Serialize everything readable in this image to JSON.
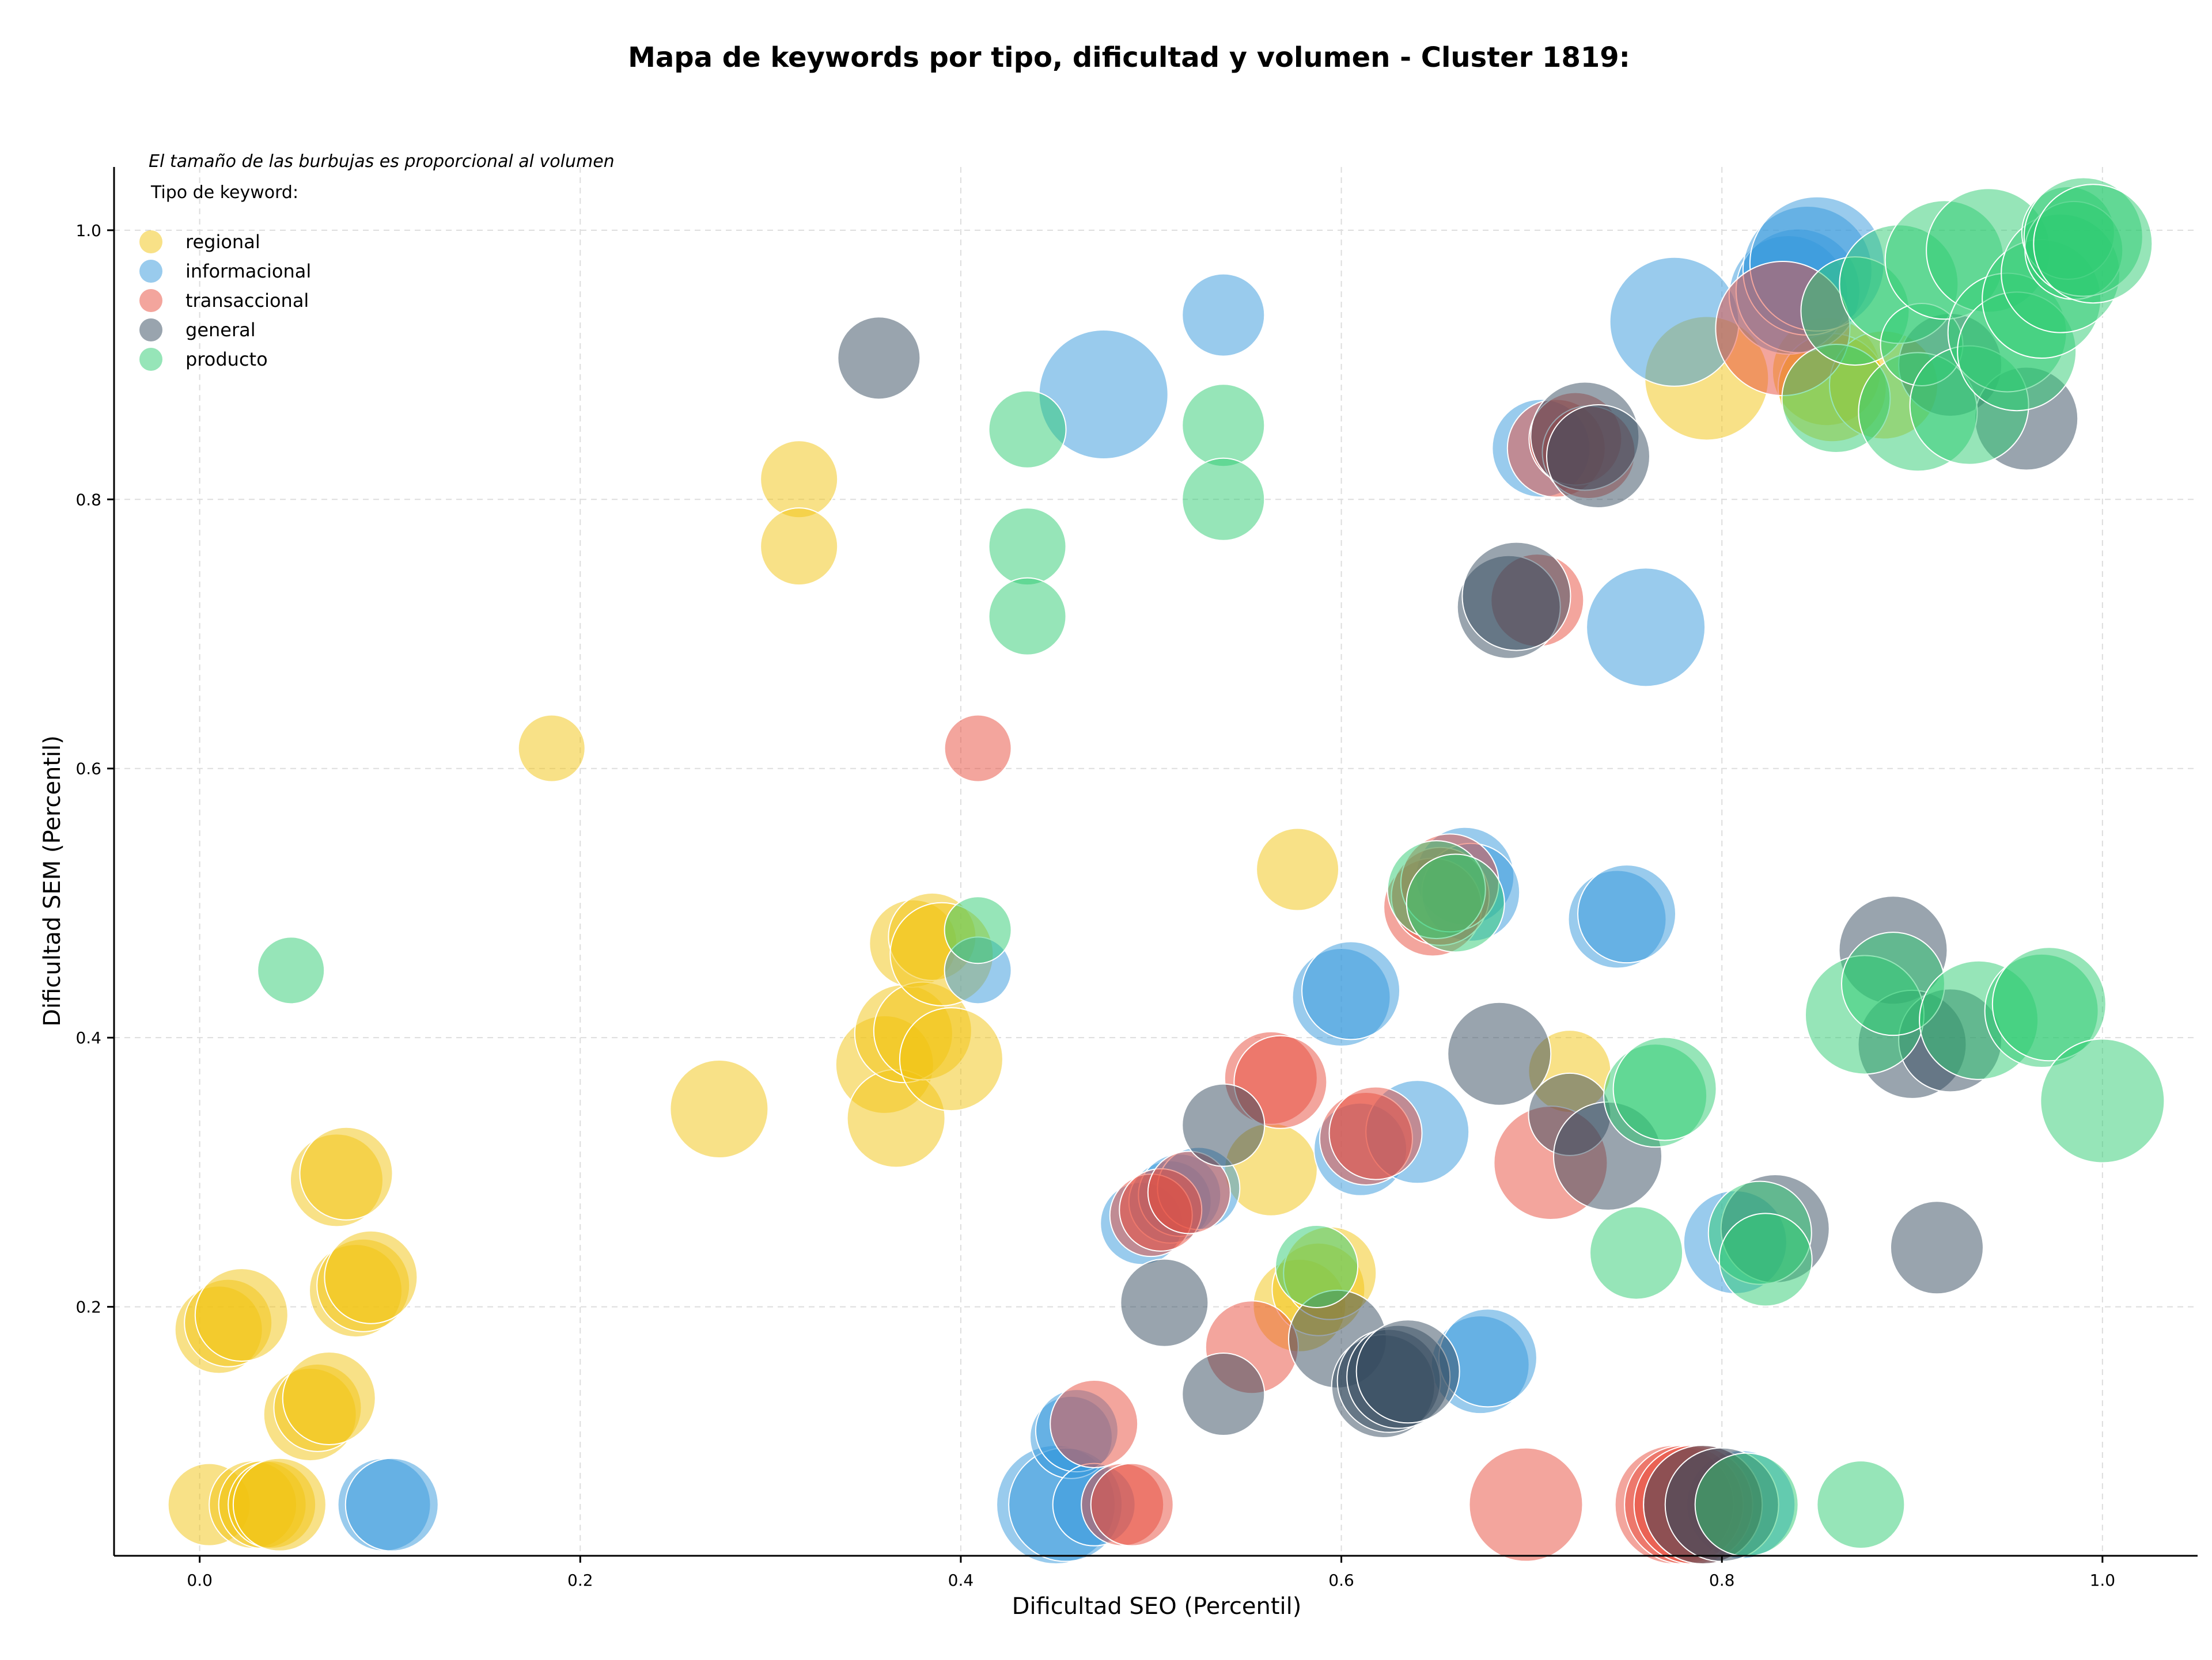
{
  "chart_data": {
    "type": "scatter",
    "title": "Mapa de keywords por tipo, dificultad y volumen - Cluster 1819:",
    "xlabel": "Dificultad SEO (Percentil)",
    "ylabel": "Dificultad SEM (Percentil)",
    "xlim": [
      -0.045,
      1.05
    ],
    "ylim": [
      0.015,
      1.047
    ],
    "x_ticks": [
      0.0,
      0.2,
      0.4,
      0.6,
      0.8,
      1.0
    ],
    "y_ticks": [
      0.2,
      0.4,
      0.6,
      0.8,
      1.0
    ],
    "x_tick_labels": [
      "0.0",
      "0.2",
      "0.4",
      "0.6",
      "0.8",
      "1.0"
    ],
    "y_tick_labels": [
      "0.2",
      "0.4",
      "0.6",
      "0.8",
      "1.0"
    ],
    "grid": true,
    "note": "El tamaño de las burbujas es proporcional al volumen",
    "legend_title": "Tipo de keyword:",
    "legend_position": "top-left",
    "series": [
      {
        "name": "regional",
        "color": "#f1c40f",
        "points": [
          [
            0.005,
            0.053,
            0.35
          ],
          [
            0.01,
            0.183,
            0.4
          ],
          [
            0.015,
            0.188,
            0.4
          ],
          [
            0.022,
            0.194,
            0.45
          ],
          [
            0.028,
            0.053,
            0.4
          ],
          [
            0.033,
            0.053,
            0.4
          ],
          [
            0.038,
            0.053,
            0.4
          ],
          [
            0.042,
            0.053,
            0.45
          ],
          [
            0.058,
            0.12,
            0.45
          ],
          [
            0.062,
            0.125,
            0.4
          ],
          [
            0.068,
            0.132,
            0.45
          ],
          [
            0.072,
            0.294,
            0.45
          ],
          [
            0.077,
            0.299,
            0.45
          ],
          [
            0.082,
            0.212,
            0.45
          ],
          [
            0.086,
            0.216,
            0.45
          ],
          [
            0.09,
            0.222,
            0.45
          ],
          [
            0.185,
            0.615,
            0.2
          ],
          [
            0.273,
            0.347,
            0.5
          ],
          [
            0.315,
            0.815,
            0.3
          ],
          [
            0.315,
            0.765,
            0.3
          ],
          [
            0.36,
            0.38,
            0.5
          ],
          [
            0.366,
            0.34,
            0.5
          ],
          [
            0.37,
            0.403,
            0.5
          ],
          [
            0.375,
            0.47,
            0.4
          ],
          [
            0.38,
            0.405,
            0.5
          ],
          [
            0.385,
            0.475,
            0.4
          ],
          [
            0.39,
            0.462,
            0.55
          ],
          [
            0.395,
            0.384,
            0.55
          ],
          [
            0.563,
            0.302,
            0.45
          ],
          [
            0.578,
            0.201,
            0.45
          ],
          [
            0.588,
            0.213,
            0.45
          ],
          [
            0.594,
            0.225,
            0.45
          ],
          [
            0.577,
            0.525,
            0.35
          ],
          [
            0.72,
            0.375,
            0.35
          ],
          [
            0.792,
            0.89,
            0.75
          ],
          [
            0.855,
            0.895,
            0.6
          ],
          [
            0.858,
            0.883,
            0.6
          ],
          [
            0.885,
            0.885,
            0.6
          ]
        ]
      },
      {
        "name": "informacional",
        "color": "#3498db",
        "points": [
          [
            0.097,
            0.053,
            0.45
          ],
          [
            0.101,
            0.053,
            0.45
          ],
          [
            0.409,
            0.45,
            0.2
          ],
          [
            0.45,
            0.053,
            0.7
          ],
          [
            0.455,
            0.053,
            0.65
          ],
          [
            0.458,
            0.103,
            0.35
          ],
          [
            0.461,
            0.108,
            0.35
          ],
          [
            0.47,
            0.053,
            0.35
          ],
          [
            0.475,
            0.878,
            0.8
          ],
          [
            0.495,
            0.262,
            0.35
          ],
          [
            0.51,
            0.278,
            0.35
          ],
          [
            0.515,
            0.283,
            0.35
          ],
          [
            0.525,
            0.288,
            0.35
          ],
          [
            0.538,
            0.937,
            0.35
          ],
          [
            0.6,
            0.43,
            0.5
          ],
          [
            0.605,
            0.435,
            0.5
          ],
          [
            0.61,
            0.317,
            0.45
          ],
          [
            0.64,
            0.33,
            0.55
          ],
          [
            0.665,
            0.52,
            0.5
          ],
          [
            0.668,
            0.508,
            0.5
          ],
          [
            0.673,
            0.157,
            0.5
          ],
          [
            0.677,
            0.162,
            0.5
          ],
          [
            0.705,
            0.838,
            0.5
          ],
          [
            0.745,
            0.488,
            0.5
          ],
          [
            0.75,
            0.492,
            0.5
          ],
          [
            0.76,
            0.705,
            0.7
          ],
          [
            0.775,
            0.932,
            0.8
          ],
          [
            0.807,
            0.248,
            0.55
          ],
          [
            0.81,
            0.053,
            0.6
          ],
          [
            0.835,
            0.952,
            0.7
          ],
          [
            0.84,
            0.955,
            0.75
          ],
          [
            0.845,
            0.97,
            0.8
          ],
          [
            0.85,
            0.975,
            0.85
          ]
        ]
      },
      {
        "name": "transaccional",
        "color": "#e74c3c",
        "points": [
          [
            0.409,
            0.615,
            0.2
          ],
          [
            0.47,
            0.113,
            0.4
          ],
          [
            0.485,
            0.053,
            0.35
          ],
          [
            0.49,
            0.053,
            0.35
          ],
          [
            0.5,
            0.268,
            0.35
          ],
          [
            0.505,
            0.272,
            0.35
          ],
          [
            0.52,
            0.285,
            0.35
          ],
          [
            0.553,
            0.17,
            0.45
          ],
          [
            0.563,
            0.37,
            0.45
          ],
          [
            0.568,
            0.367,
            0.45
          ],
          [
            0.613,
            0.325,
            0.45
          ],
          [
            0.618,
            0.329,
            0.45
          ],
          [
            0.648,
            0.497,
            0.5
          ],
          [
            0.652,
            0.505,
            0.5
          ],
          [
            0.657,
            0.515,
            0.5
          ],
          [
            0.697,
            0.053,
            0.65
          ],
          [
            0.703,
            0.725,
            0.45
          ],
          [
            0.71,
            0.307,
            0.65
          ],
          [
            0.713,
            0.838,
            0.5
          ],
          [
            0.723,
            0.845,
            0.45
          ],
          [
            0.73,
            0.835,
            0.45
          ],
          [
            0.775,
            0.053,
            0.7
          ],
          [
            0.78,
            0.053,
            0.7
          ],
          [
            0.785,
            0.053,
            0.7
          ],
          [
            0.79,
            0.053,
            0.7
          ],
          [
            0.832,
            0.927,
            0.85
          ]
        ]
      },
      {
        "name": "general",
        "color": "#34495e",
        "points": [
          [
            0.357,
            0.905,
            0.35
          ],
          [
            0.507,
            0.203,
            0.4
          ],
          [
            0.538,
            0.135,
            0.35
          ],
          [
            0.538,
            0.335,
            0.35
          ],
          [
            0.598,
            0.176,
            0.5
          ],
          [
            0.622,
            0.141,
            0.55
          ],
          [
            0.625,
            0.145,
            0.55
          ],
          [
            0.63,
            0.148,
            0.55
          ],
          [
            0.635,
            0.152,
            0.55
          ],
          [
            0.683,
            0.388,
            0.55
          ],
          [
            0.688,
            0.72,
            0.55
          ],
          [
            0.692,
            0.728,
            0.6
          ],
          [
            0.72,
            0.343,
            0.35
          ],
          [
            0.728,
            0.847,
            0.6
          ],
          [
            0.735,
            0.832,
            0.55
          ],
          [
            0.74,
            0.312,
            0.6
          ],
          [
            0.79,
            0.053,
            0.7
          ],
          [
            0.8,
            0.053,
            0.65
          ],
          [
            0.828,
            0.258,
            0.6
          ],
          [
            0.89,
            0.465,
            0.6
          ],
          [
            0.9,
            0.395,
            0.6
          ],
          [
            0.913,
            0.244,
            0.45
          ],
          [
            0.92,
            0.398,
            0.55
          ],
          [
            0.92,
            0.9,
            0.55
          ],
          [
            0.96,
            0.86,
            0.55
          ]
        ]
      },
      {
        "name": "producto",
        "color": "#2ecc71",
        "points": [
          [
            0.048,
            0.45,
            0.2
          ],
          [
            0.409,
            0.48,
            0.2
          ],
          [
            0.435,
            0.852,
            0.3
          ],
          [
            0.435,
            0.765,
            0.3
          ],
          [
            0.435,
            0.713,
            0.3
          ],
          [
            0.538,
            0.855,
            0.35
          ],
          [
            0.538,
            0.8,
            0.35
          ],
          [
            0.587,
            0.23,
            0.35
          ],
          [
            0.65,
            0.51,
            0.5
          ],
          [
            0.66,
            0.5,
            0.5
          ],
          [
            0.755,
            0.24,
            0.45
          ],
          [
            0.765,
            0.357,
            0.55
          ],
          [
            0.77,
            0.362,
            0.55
          ],
          [
            0.813,
            0.053,
            0.55
          ],
          [
            0.82,
            0.255,
            0.55
          ],
          [
            0.823,
            0.235,
            0.45
          ],
          [
            0.86,
            0.875,
            0.6
          ],
          [
            0.87,
            0.94,
            0.6
          ],
          [
            0.873,
            0.053,
            0.4
          ],
          [
            0.875,
            0.417,
            0.7
          ],
          [
            0.89,
            0.44,
            0.55
          ],
          [
            0.893,
            0.96,
            0.7
          ],
          [
            0.903,
            0.865,
            0.7
          ],
          [
            0.905,
            0.915,
            0.35
          ],
          [
            0.917,
            0.978,
            0.7
          ],
          [
            0.93,
            0.87,
            0.7
          ],
          [
            0.935,
            0.413,
            0.7
          ],
          [
            0.94,
            0.985,
            0.75
          ],
          [
            0.95,
            0.924,
            0.7
          ],
          [
            0.955,
            0.91,
            0.7
          ],
          [
            0.968,
            0.949,
            0.7
          ],
          [
            0.968,
            0.42,
            0.65
          ],
          [
            0.972,
            0.425,
            0.65
          ],
          [
            0.978,
            0.968,
            0.7
          ],
          [
            0.982,
            0.998,
            0.45
          ],
          [
            0.985,
            0.985,
            0.5
          ],
          [
            0.99,
            0.995,
            0.7
          ],
          [
            0.995,
            0.99,
            0.7
          ],
          [
            1.0,
            0.353,
            0.75
          ]
        ]
      }
    ]
  }
}
